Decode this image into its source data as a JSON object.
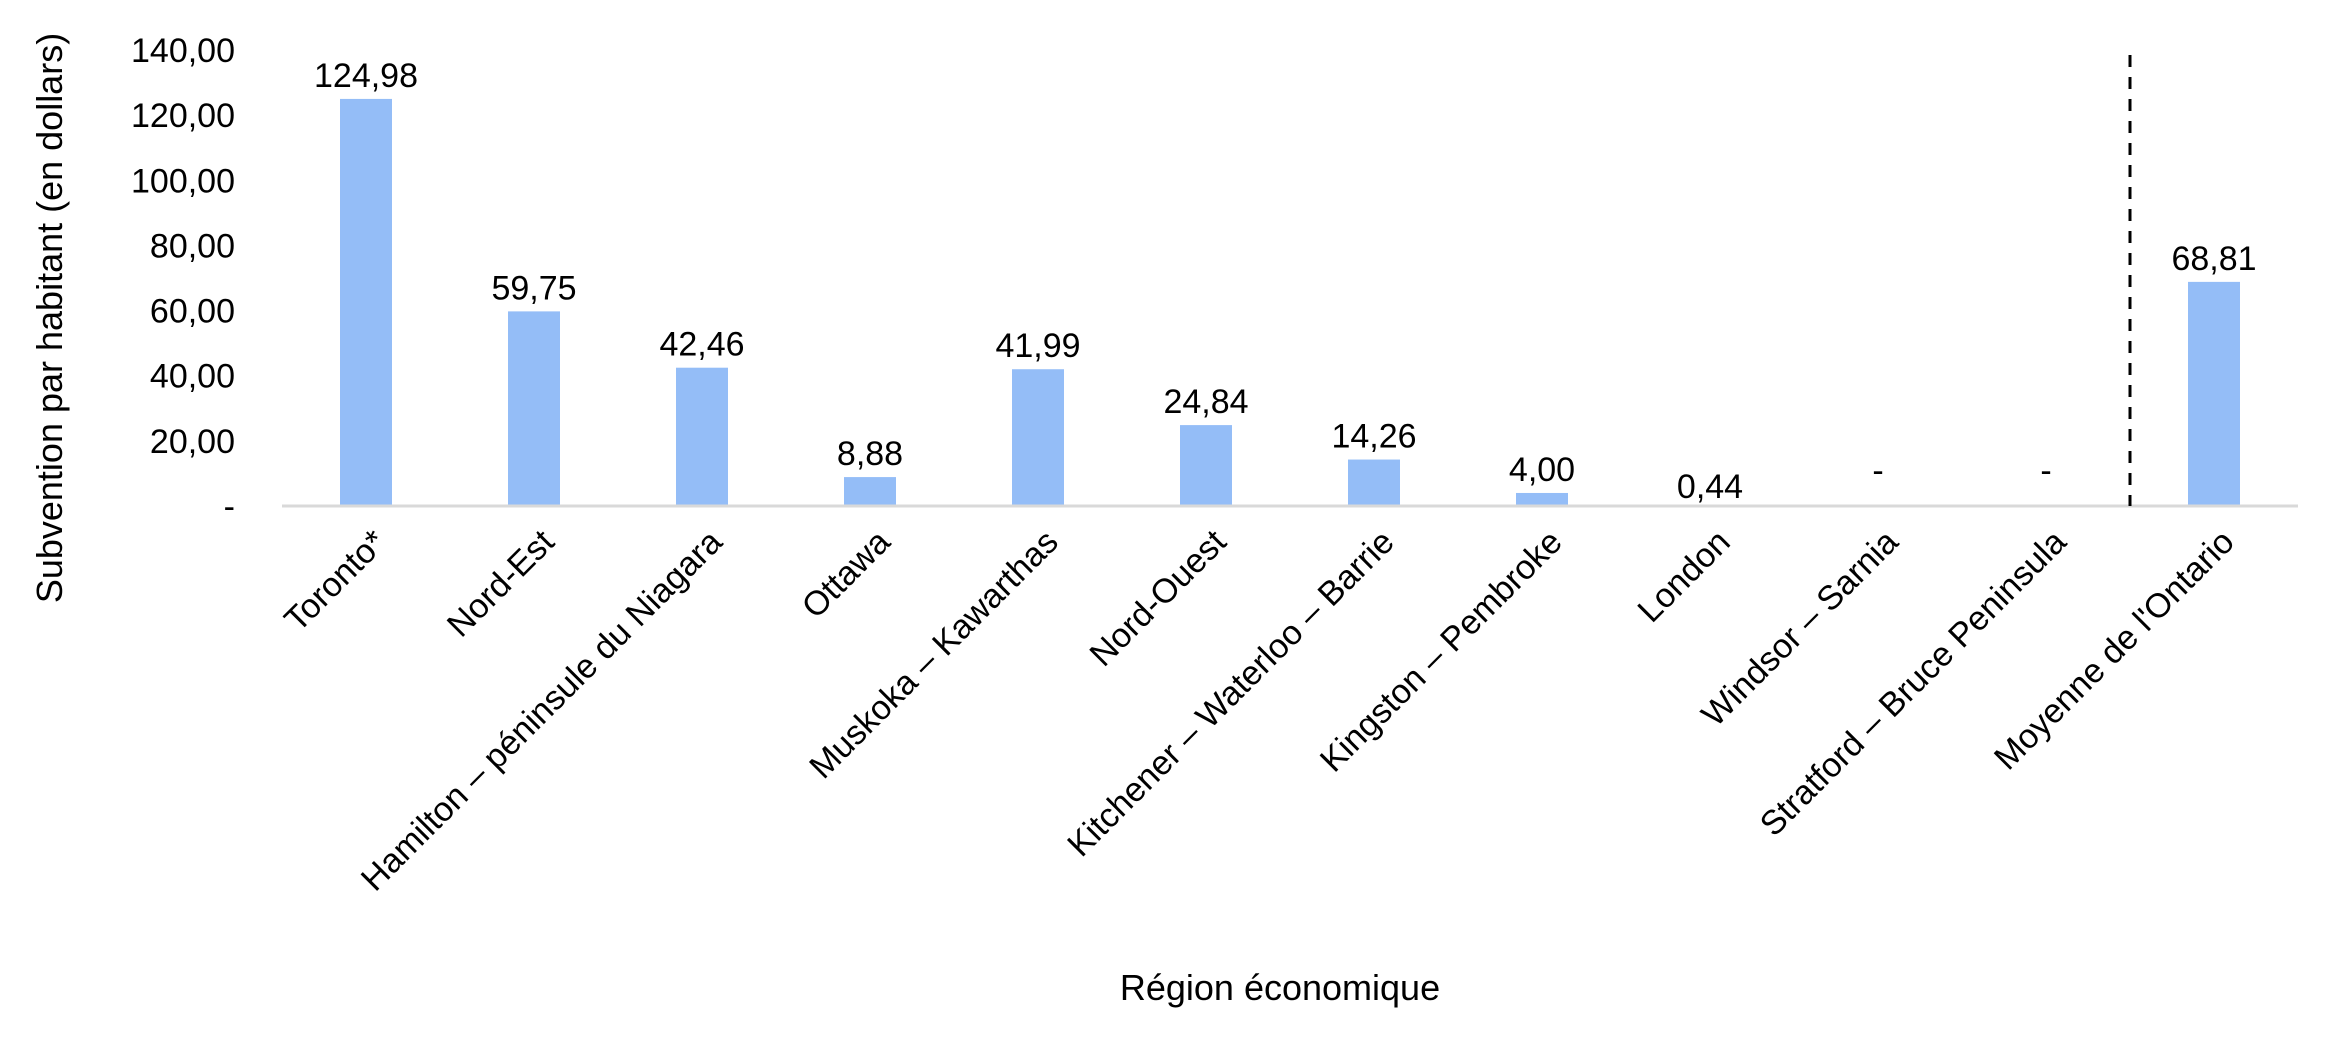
{
  "chart_data": {
    "type": "bar",
    "xlabel": "Région économique",
    "ylabel": "Subvention par habitant (en dollars)",
    "ylim": [
      0,
      140
    ],
    "yticks": [
      0,
      20,
      40,
      60,
      80,
      100,
      120,
      140
    ],
    "ytick_labels": [
      "-",
      "20,00",
      "40,00",
      "60,00",
      "80,00",
      "100,00",
      "120,00",
      "140,00"
    ],
    "categories": [
      "Toronto*",
      "Nord-Est",
      "Hamilton – péninsule du Niagara",
      "Ottawa",
      "Muskoka – Kawarthas",
      "Nord-Ouest",
      "Kitchener – Waterloo – Barrie",
      "Kingston – Pembroke",
      "London",
      "Windsor – Sarnia",
      "Stratford – Bruce Peninsula",
      "Moyenne de l'Ontario"
    ],
    "values": [
      124.98,
      59.75,
      42.46,
      8.88,
      41.99,
      24.84,
      14.26,
      4.0,
      0.44,
      0,
      0,
      68.81
    ],
    "data_labels": [
      "124,98",
      "59,75",
      "42,46",
      "8,88",
      "41,99",
      "24,84",
      "14,26",
      "4,00",
      "0,44",
      "-",
      "-",
      "68,81"
    ],
    "bar_color": "#94bdf7",
    "separator": "dashed line between Stratford – Bruce Peninsula and Moyenne de l'Ontario",
    "grid": false,
    "legend": "none"
  }
}
